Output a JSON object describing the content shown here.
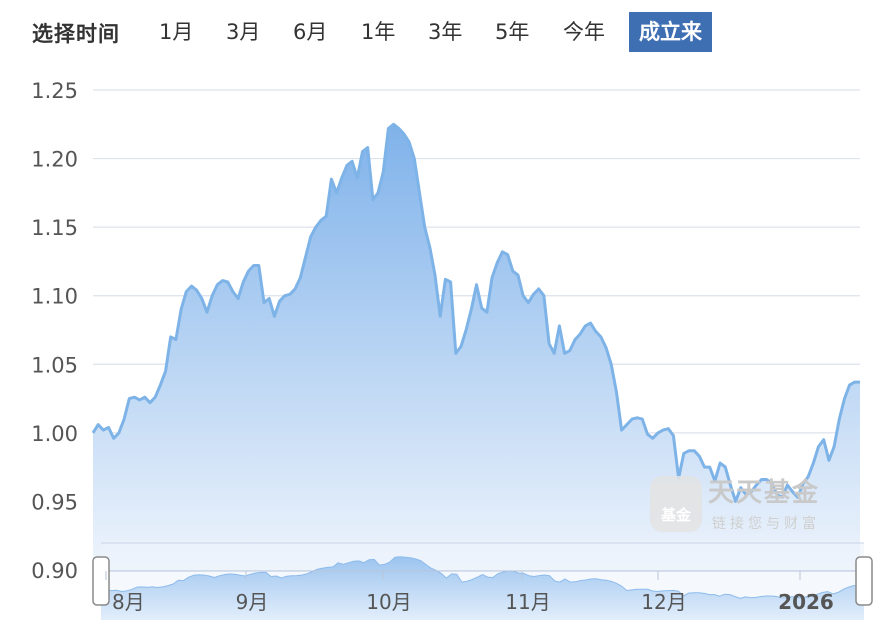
{
  "toolbar": {
    "label": "选择时间",
    "buttons": [
      "1月",
      "3月",
      "6月",
      "1年",
      "3年",
      "5年",
      "今年",
      "成立来"
    ],
    "active": "成立来"
  },
  "watermark": {
    "logo": "基金",
    "title": "天天基金",
    "subtitle": "链接您与财富"
  },
  "colors": {
    "line": "#7eb3e8",
    "area_top": "#7fb2ea",
    "area_bottom": "#ecf3fc",
    "active": "#3f6fb3",
    "grid": "#dde3ec"
  },
  "chart_data": {
    "type": "area",
    "ylim": [
      0.9,
      1.25
    ],
    "yticks": [
      "1.25",
      "1.20",
      "1.15",
      "1.10",
      "1.05",
      "1.00",
      "0.95",
      "0.90"
    ],
    "xticks": [
      "8月",
      "9月",
      "10月",
      "11月",
      "12月",
      "2026"
    ],
    "values": [
      1.0,
      1.006,
      1.002,
      1.004,
      0.996,
      1.0,
      1.01,
      1.025,
      1.026,
      1.024,
      1.026,
      1.022,
      1.026,
      1.035,
      1.045,
      1.07,
      1.068,
      1.09,
      1.103,
      1.107,
      1.104,
      1.098,
      1.088,
      1.1,
      1.108,
      1.111,
      1.11,
      1.103,
      1.098,
      1.11,
      1.118,
      1.122,
      1.122,
      1.095,
      1.098,
      1.085,
      1.096,
      1.1,
      1.101,
      1.105,
      1.113,
      1.128,
      1.143,
      1.15,
      1.155,
      1.158,
      1.185,
      1.175,
      1.186,
      1.195,
      1.198,
      1.186,
      1.205,
      1.208,
      1.17,
      1.175,
      1.19,
      1.222,
      1.225,
      1.222,
      1.218,
      1.212,
      1.2,
      1.175,
      1.15,
      1.135,
      1.115,
      1.085,
      1.112,
      1.11,
      1.058,
      1.063,
      1.075,
      1.09,
      1.108,
      1.091,
      1.088,
      1.113,
      1.124,
      1.132,
      1.13,
      1.118,
      1.115,
      1.1,
      1.095,
      1.101,
      1.105,
      1.1,
      1.065,
      1.058,
      1.078,
      1.058,
      1.06,
      1.068,
      1.072,
      1.078,
      1.08,
      1.074,
      1.07,
      1.062,
      1.05,
      1.03,
      1.002,
      1.006,
      1.01,
      1.011,
      1.01,
      0.999,
      0.996,
      1.0,
      1.002,
      1.003,
      0.998,
      0.967,
      0.985,
      0.987,
      0.987,
      0.983,
      0.975,
      0.975,
      0.965,
      0.978,
      0.975,
      0.962,
      0.95,
      0.96,
      0.955,
      0.957,
      0.962,
      0.966,
      0.966,
      0.963,
      0.955,
      0.953,
      0.962,
      0.957,
      0.953,
      0.963,
      0.968,
      0.978,
      0.99,
      0.995,
      0.98,
      0.99,
      1.01,
      1.025,
      1.035,
      1.037,
      1.037
    ],
    "navigator": {
      "ylim": [
        0.9,
        1.25
      ],
      "labels": [
        "8月",
        "9月",
        "10月",
        "11月",
        "12月",
        "2026"
      ]
    }
  }
}
